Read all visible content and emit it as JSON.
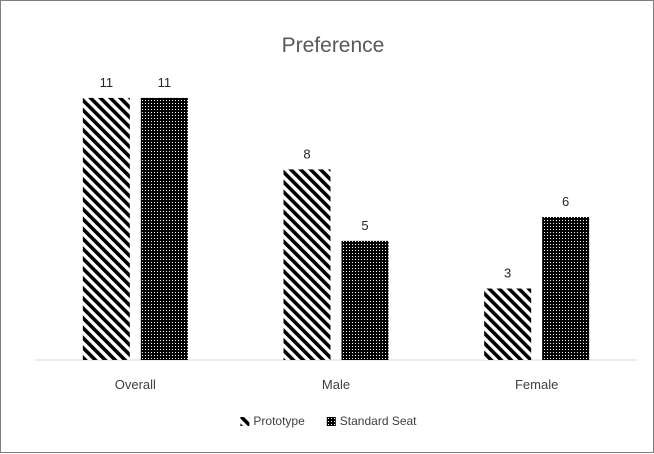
{
  "chart_data": {
    "type": "bar",
    "title": "Preference",
    "xlabel": "",
    "ylabel": "",
    "categories": [
      "Overall",
      "Male",
      "Female"
    ],
    "series": [
      {
        "name": "Prototype",
        "values": [
          11,
          8,
          3
        ],
        "pattern": "diagonal-stripes",
        "color": "#000000"
      },
      {
        "name": "Standard Seat",
        "values": [
          11,
          5,
          6
        ],
        "pattern": "dotted-dense",
        "color": "#000000"
      }
    ],
    "ylim": [
      0,
      11.5
    ],
    "grid": false,
    "data_labels": true,
    "legend": "bottom"
  }
}
